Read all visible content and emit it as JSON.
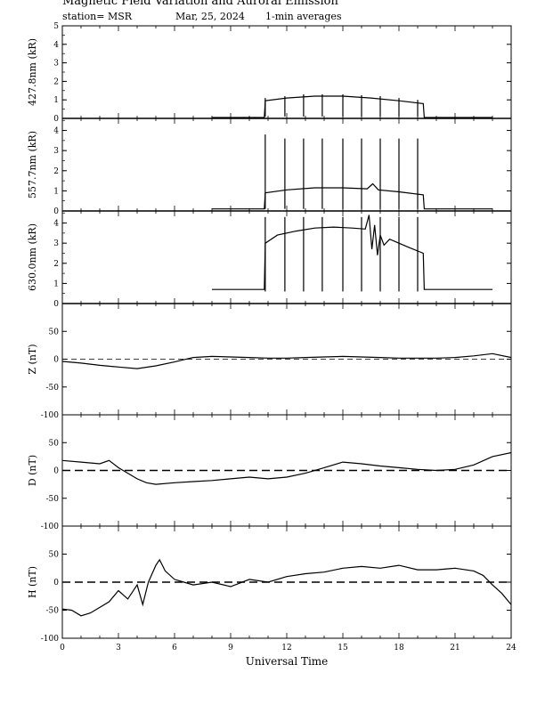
{
  "header": {
    "title": "Magnetic Field Variation and Auroral Emission",
    "station": "station= MSR",
    "date": "Mar, 25, 2024",
    "averaging": "1-min averages"
  },
  "chart_data": [
    {
      "type": "line",
      "ylabel": "427.8nm (kR)",
      "xlim": [
        0,
        24
      ],
      "ylim": [
        0,
        5
      ],
      "yticks": [
        0,
        1,
        2,
        3,
        4,
        5
      ],
      "xticks": [
        0,
        3,
        6,
        9,
        12,
        15,
        18,
        21,
        24
      ],
      "series": [
        {
          "x": [
            8,
            10.8,
            10.85,
            12,
            13.5,
            15,
            16.5,
            18,
            19.3,
            19.35,
            23
          ],
          "y": [
            0.05,
            0.05,
            0.95,
            1.1,
            1.2,
            1.2,
            1.1,
            0.95,
            0.8,
            0.05,
            0.05
          ]
        }
      ],
      "spikes": {
        "x": [
          10.85,
          11.9,
          12.9,
          13.9,
          15,
          16,
          17,
          18,
          19
        ],
        "low": [
          0.1,
          0.1,
          0.1,
          0.1,
          0.1,
          0.1,
          0.1,
          0.1,
          0.1
        ],
        "high": [
          1.1,
          1.2,
          1.3,
          1.3,
          1.3,
          1.25,
          1.2,
          1.1,
          1.0
        ]
      }
    },
    {
      "type": "line",
      "ylabel": "557.7nm (kR)",
      "xlim": [
        0,
        24
      ],
      "ylim": [
        0,
        4.6
      ],
      "yticks": [
        0,
        1,
        2,
        3,
        4
      ],
      "xticks": [
        0,
        3,
        6,
        9,
        12,
        15,
        18,
        21,
        24
      ],
      "series": [
        {
          "x": [
            8,
            10.8,
            10.85,
            12,
            13.5,
            15,
            16.3,
            16.6,
            16.9,
            18,
            19.3,
            19.35,
            23
          ],
          "y": [
            0.1,
            0.1,
            0.9,
            1.05,
            1.15,
            1.15,
            1.1,
            1.35,
            1.05,
            0.95,
            0.8,
            0.1,
            0.1
          ]
        }
      ],
      "spikes": {
        "x": [
          10.85,
          11.9,
          12.9,
          13.9,
          15,
          16,
          17,
          18,
          19
        ],
        "low": [
          0.1,
          0.1,
          0.1,
          0.1,
          0.1,
          0.1,
          0.1,
          0.1,
          0.1
        ],
        "high": [
          3.8,
          3.6,
          3.6,
          3.6,
          3.6,
          3.6,
          3.6,
          3.6,
          3.6
        ]
      }
    },
    {
      "type": "line",
      "ylabel": "630.0nm (kR)",
      "xlim": [
        0,
        24
      ],
      "ylim": [
        0,
        4.6
      ],
      "yticks": [
        0,
        1,
        2,
        3,
        4
      ],
      "xticks": [
        0,
        3,
        6,
        9,
        12,
        15,
        18,
        21,
        24
      ],
      "series": [
        {
          "x": [
            8,
            10.8,
            10.85,
            11.5,
            12.5,
            13.5,
            14.5,
            15.5,
            16.2,
            16.4,
            16.55,
            16.7,
            16.85,
            17,
            17.2,
            17.5,
            18,
            18.5,
            19.3,
            19.35,
            23
          ],
          "y": [
            0.7,
            0.7,
            3.0,
            3.4,
            3.6,
            3.75,
            3.8,
            3.75,
            3.7,
            4.4,
            2.7,
            3.9,
            2.4,
            3.4,
            2.9,
            3.2,
            3.0,
            2.8,
            2.5,
            0.7,
            0.7
          ]
        }
      ],
      "spikes": {
        "x": [
          10.85,
          11.9,
          12.9,
          13.9,
          15,
          16,
          17,
          18,
          19
        ],
        "low": [
          0.6,
          0.6,
          0.6,
          0.6,
          0.6,
          0.6,
          0.6,
          0.6,
          0.6
        ],
        "high": [
          4.3,
          4.3,
          4.3,
          4.3,
          4.3,
          4.3,
          4.3,
          4.3,
          4.3
        ]
      }
    },
    {
      "type": "line",
      "ylabel": "Z (nT)",
      "xlim": [
        0,
        24
      ],
      "ylim": [
        -100,
        100
      ],
      "yticks": [
        -100,
        -50,
        0,
        50
      ],
      "xticks": [
        0,
        3,
        6,
        9,
        12,
        15,
        18,
        21,
        24
      ],
      "reference_line": 0,
      "series": [
        {
          "x": [
            0,
            1,
            2,
            3,
            4,
            5,
            6,
            7,
            8,
            9,
            10,
            11,
            12,
            13,
            14,
            15,
            16,
            17,
            18,
            19,
            20,
            21,
            22,
            23,
            24
          ],
          "y": [
            -4,
            -7,
            -11,
            -14,
            -17,
            -12,
            -5,
            3,
            5,
            4,
            3,
            2,
            2,
            3,
            4,
            5,
            4,
            3,
            2,
            2,
            2,
            3,
            6,
            10,
            3
          ]
        }
      ]
    },
    {
      "type": "line",
      "ylabel": "D (nT)",
      "xlim": [
        0,
        24
      ],
      "ylim": [
        -100,
        100
      ],
      "yticks": [
        -100,
        -50,
        0,
        50
      ],
      "xticks": [
        0,
        3,
        6,
        9,
        12,
        15,
        18,
        21,
        24
      ],
      "reference_line": 0,
      "series": [
        {
          "x": [
            0,
            1,
            2,
            2.5,
            3,
            3.5,
            4,
            4.5,
            5,
            6,
            7,
            8,
            9,
            10,
            11,
            12,
            13,
            14,
            15,
            16,
            17,
            18,
            19,
            20,
            21,
            22,
            23,
            24
          ],
          "y": [
            18,
            15,
            12,
            18,
            5,
            -5,
            -15,
            -22,
            -25,
            -22,
            -20,
            -18,
            -15,
            -12,
            -15,
            -12,
            -5,
            5,
            15,
            12,
            8,
            5,
            2,
            0,
            2,
            10,
            25,
            32
          ]
        }
      ]
    },
    {
      "type": "line",
      "ylabel": "H (nT)",
      "xlim": [
        0,
        24
      ],
      "ylim": [
        -100,
        100
      ],
      "yticks": [
        -100,
        -50,
        0,
        50
      ],
      "xticks": [
        0,
        3,
        6,
        9,
        12,
        15,
        18,
        21,
        24
      ],
      "reference_line": 0,
      "series": [
        {
          "x": [
            0,
            0.5,
            1,
            1.5,
            2,
            2.5,
            3,
            3.5,
            4,
            4.3,
            4.6,
            5,
            5.2,
            5.5,
            6,
            6.5,
            7,
            8,
            9,
            10,
            11,
            12,
            13,
            14,
            15,
            16,
            17,
            18,
            19,
            20,
            21,
            22,
            22.5,
            23,
            23.5,
            24
          ],
          "y": [
            -48,
            -50,
            -60,
            -55,
            -45,
            -35,
            -15,
            -30,
            -5,
            -40,
            0,
            30,
            40,
            20,
            5,
            0,
            -5,
            0,
            -8,
            5,
            0,
            10,
            15,
            18,
            25,
            28,
            25,
            30,
            22,
            22,
            25,
            20,
            12,
            -5,
            -20,
            -40
          ]
        }
      ]
    }
  ],
  "x_axis": {
    "label": "Universal Time",
    "ticklabels": [
      "0",
      "3",
      "6",
      "9",
      "12",
      "15",
      "18",
      "21",
      "24"
    ]
  }
}
